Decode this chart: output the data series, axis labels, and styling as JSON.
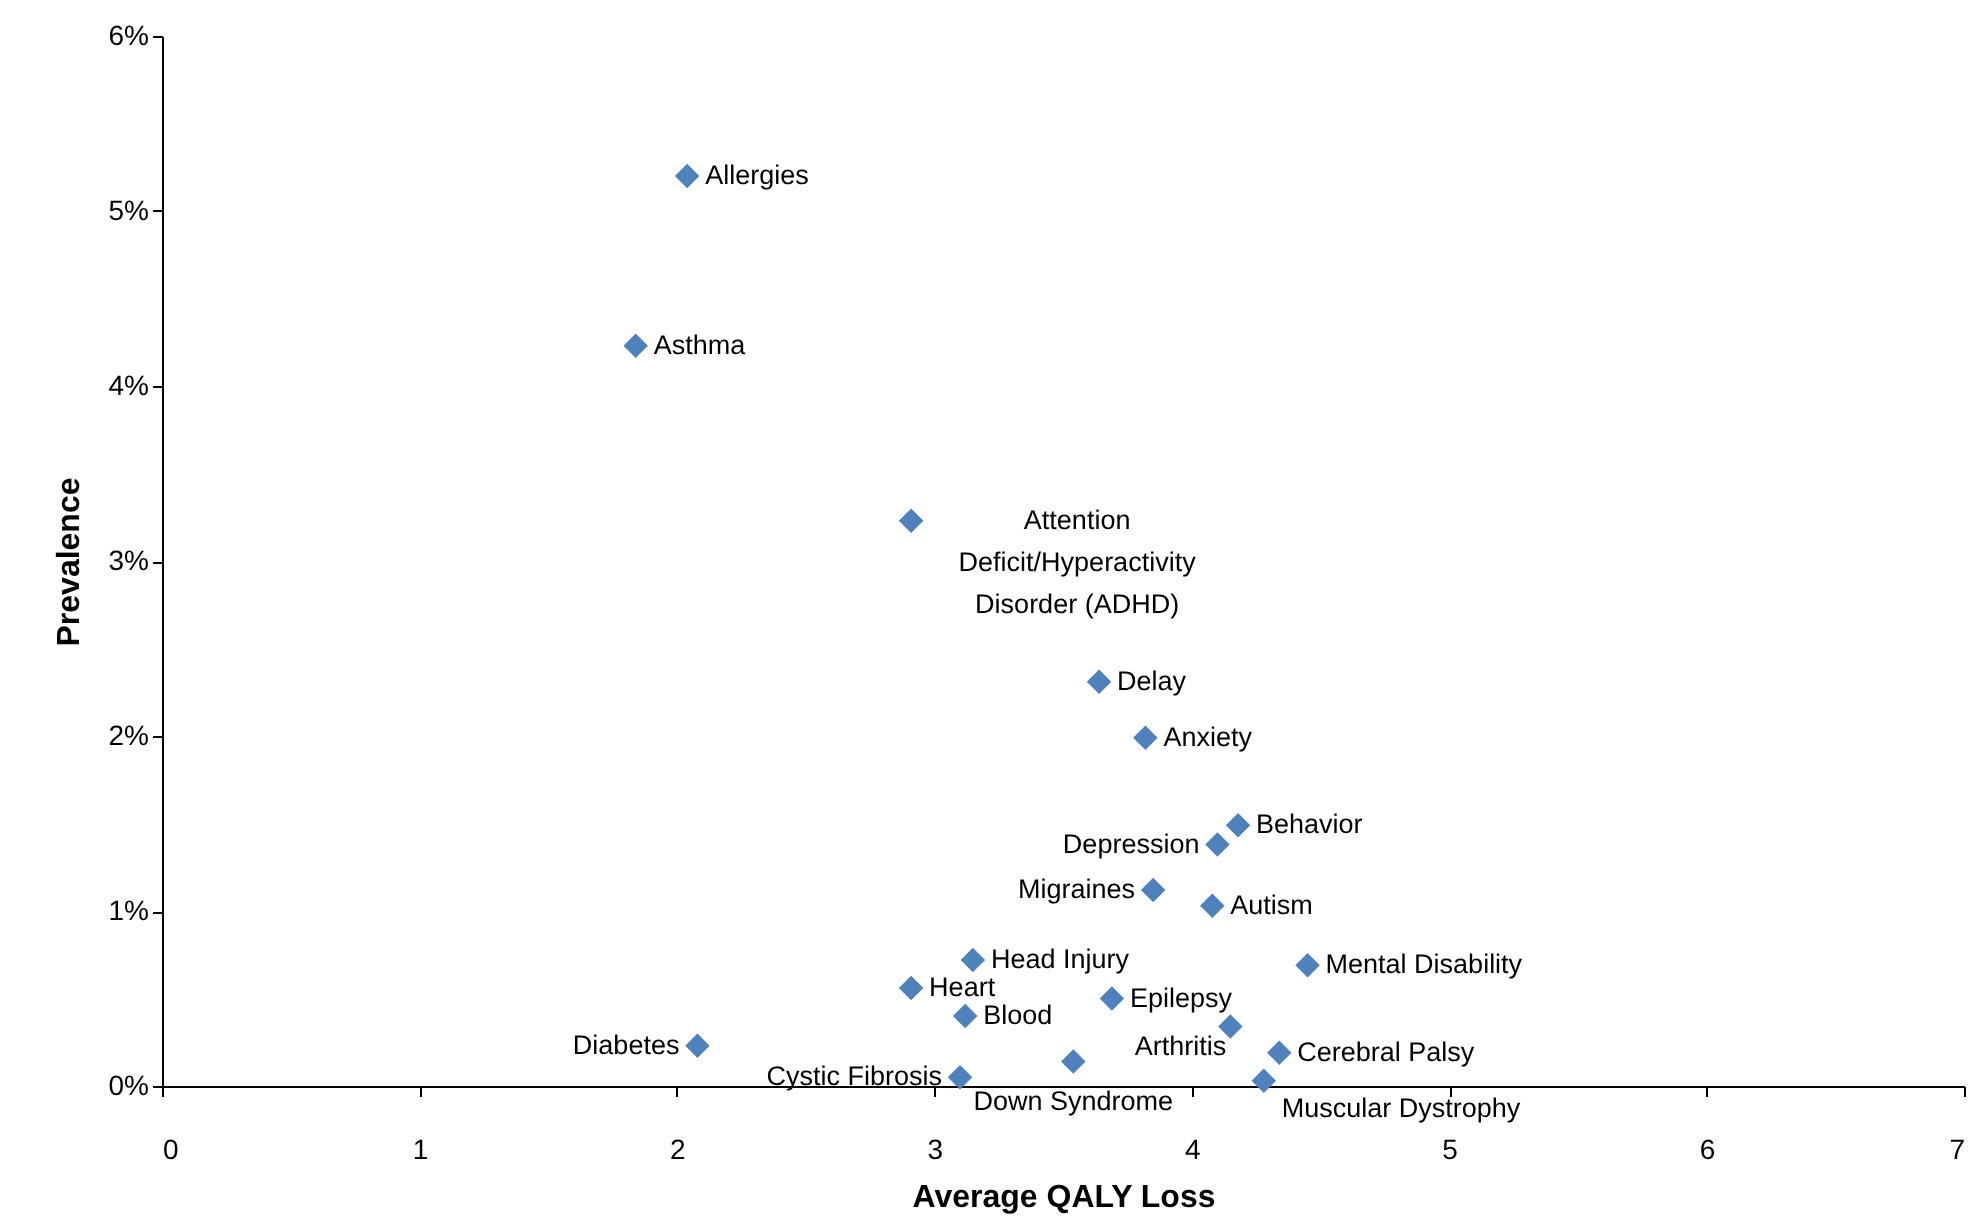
{
  "chart_data": {
    "type": "scatter",
    "xlabel": "Average QALY Loss",
    "ylabel": "Prevalence",
    "marker": "diamond",
    "grid": false,
    "x": [
      2.04,
      1.84,
      2.91,
      3.64,
      3.82,
      4.18,
      4.1,
      3.85,
      4.08,
      4.45,
      3.15,
      2.91,
      3.69,
      3.12,
      4.15,
      4.34,
      2.08,
      3.1,
      3.54,
      4.28
    ],
    "series": [
      {
        "color": "#4f81bd",
        "values": [
          5.2,
          4.23,
          3.23,
          2.31,
          1.99,
          1.49,
          1.38,
          1.12,
          1.03,
          0.69,
          0.72,
          0.56,
          0.5,
          0.4,
          0.34,
          0.19,
          0.23,
          0.05,
          0.14,
          0.03
        ]
      }
    ],
    "annotations": [
      {
        "text": "Allergies",
        "x": 2.04,
        "y": 5.2
      },
      {
        "text": "Asthma",
        "x": 1.84,
        "y": 4.23
      },
      {
        "text": "Attention Deficit/Hyperactivity Disorder (ADHD)",
        "x": 2.91,
        "y": 3.23
      },
      {
        "text": "Delay",
        "x": 3.64,
        "y": 2.31
      },
      {
        "text": "Anxiety",
        "x": 3.82,
        "y": 1.99
      },
      {
        "text": "Behavior",
        "x": 4.18,
        "y": 1.49
      },
      {
        "text": "Depression",
        "x": 4.1,
        "y": 1.38
      },
      {
        "text": "Migraines",
        "x": 3.85,
        "y": 1.12
      },
      {
        "text": "Autism",
        "x": 4.08,
        "y": 1.03
      },
      {
        "text": "Mental Disability",
        "x": 4.45,
        "y": 0.69
      },
      {
        "text": "Head Injury",
        "x": 3.15,
        "y": 0.72
      },
      {
        "text": "Heart",
        "x": 2.91,
        "y": 0.56
      },
      {
        "text": "Epilepsy",
        "x": 3.69,
        "y": 0.5
      },
      {
        "text": "Blood",
        "x": 3.12,
        "y": 0.4
      },
      {
        "text": "Arthritis",
        "x": 4.15,
        "y": 0.34
      },
      {
        "text": "Cerebral Palsy",
        "x": 4.34,
        "y": 0.19
      },
      {
        "text": "Diabetes",
        "x": 2.08,
        "y": 0.23
      },
      {
        "text": "Cystic Fibrosis",
        "x": 3.1,
        "y": 0.05
      },
      {
        "text": "Down Syndrome",
        "x": 3.54,
        "y": 0.14
      },
      {
        "text": "Muscular Dystrophy",
        "x": 4.28,
        "y": 0.03
      }
    ],
    "xlim": [
      0,
      7
    ],
    "xticks": [
      0,
      1,
      2,
      3,
      4,
      5,
      6,
      7
    ],
    "ylim": [
      0,
      6
    ],
    "yticks": [
      {
        "value": 0,
        "label": "0%"
      },
      {
        "value": 1,
        "label": "1%"
      },
      {
        "value": 2,
        "label": "2%"
      },
      {
        "value": 3,
        "label": "3%"
      },
      {
        "value": 4,
        "label": "4%"
      },
      {
        "value": 5,
        "label": "5%"
      },
      {
        "value": 6,
        "label": "6%"
      }
    ]
  }
}
